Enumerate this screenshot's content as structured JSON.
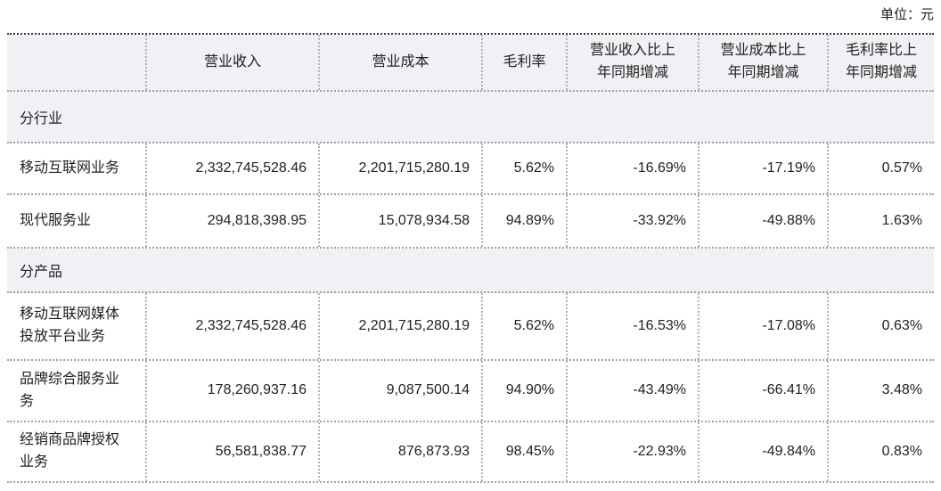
{
  "unit_label": "单位：元",
  "table": {
    "columns": [
      "",
      "营业收入",
      "营业成本",
      "毛利率",
      "营业收入比上年同期增减",
      "营业成本比上年同期增减",
      "毛利率比上年同期增减"
    ],
    "sections": [
      {
        "label": "分行业",
        "rows": [
          {
            "label": "移动互联网业务",
            "cells": [
              "2,332,745,528.46",
              "2,201,715,280.19",
              "5.62%",
              "-16.69%",
              "-17.19%",
              "0.57%"
            ]
          },
          {
            "label": "现代服务业",
            "cells": [
              "294,818,398.95",
              "15,078,934.58",
              "94.89%",
              "-33.92%",
              "-49.88%",
              "1.63%"
            ]
          }
        ]
      },
      {
        "label": "分产品",
        "rows": [
          {
            "label": "移动互联网媒体投放平台业务",
            "cells": [
              "2,332,745,528.46",
              "2,201,715,280.19",
              "5.62%",
              "-16.53%",
              "-17.08%",
              "0.63%"
            ]
          },
          {
            "label": "品牌综合服务业务",
            "cells": [
              "178,260,937.16",
              "9,087,500.14",
              "94.90%",
              "-43.49%",
              "-66.41%",
              "3.48%"
            ]
          },
          {
            "label": "经销商品牌授权业务",
            "cells": [
              "56,581,838.77",
              "876,873.93",
              "98.45%",
              "-22.93%",
              "-49.84%",
              "0.83%"
            ]
          }
        ]
      }
    ]
  },
  "colors": {
    "header_background": "#f0f1f4",
    "section_background": "#f0f1f4",
    "border_top": "#3c3c3c",
    "border_inner": "#a2a2a2",
    "text": "#212121"
  }
}
